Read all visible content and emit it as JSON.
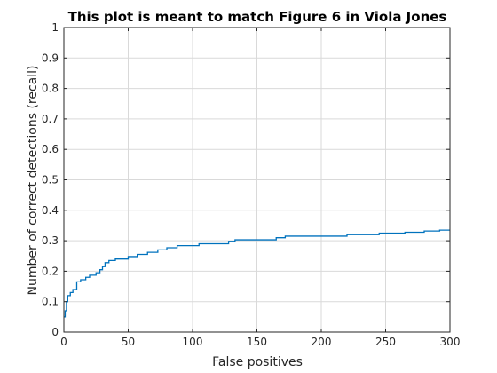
{
  "chart_data": {
    "type": "line",
    "title": "This plot is meant to match Figure 6 in Viola Jones",
    "xlabel": "False positives",
    "ylabel": "Number of correct detections (recall)",
    "xlim": [
      0,
      300
    ],
    "ylim": [
      0,
      1
    ],
    "xticks": [
      "0",
      "50",
      "100",
      "150",
      "200",
      "250",
      "300"
    ],
    "yticks": [
      "0",
      "0.1",
      "0.2",
      "0.3",
      "0.4",
      "0.5",
      "0.6",
      "0.7",
      "0.8",
      "0.9",
      "1"
    ],
    "xtick_values": [
      0,
      50,
      100,
      150,
      200,
      250,
      300
    ],
    "ytick_values": [
      0,
      0.1,
      0.2,
      0.3,
      0.4,
      0.5,
      0.6,
      0.7,
      0.8,
      0.9,
      1
    ],
    "grid": true,
    "series": [
      {
        "color": "#0072bd",
        "step": true,
        "points": [
          [
            0,
            0.05
          ],
          [
            1,
            0.07
          ],
          [
            2,
            0.1
          ],
          [
            3,
            0.12
          ],
          [
            5,
            0.13
          ],
          [
            7,
            0.14
          ],
          [
            10,
            0.165
          ],
          [
            13,
            0.172
          ],
          [
            17,
            0.18
          ],
          [
            20,
            0.187
          ],
          [
            25,
            0.195
          ],
          [
            28,
            0.205
          ],
          [
            30,
            0.215
          ],
          [
            32,
            0.228
          ],
          [
            35,
            0.235
          ],
          [
            40,
            0.24
          ],
          [
            50,
            0.248
          ],
          [
            57,
            0.255
          ],
          [
            65,
            0.262
          ],
          [
            73,
            0.27
          ],
          [
            80,
            0.277
          ],
          [
            88,
            0.284
          ],
          [
            105,
            0.29
          ],
          [
            128,
            0.298
          ],
          [
            133,
            0.303
          ],
          [
            165,
            0.31
          ],
          [
            172,
            0.315
          ],
          [
            220,
            0.32
          ],
          [
            245,
            0.325
          ],
          [
            265,
            0.328
          ],
          [
            280,
            0.332
          ],
          [
            292,
            0.335
          ],
          [
            300,
            0.335
          ]
        ]
      }
    ]
  }
}
